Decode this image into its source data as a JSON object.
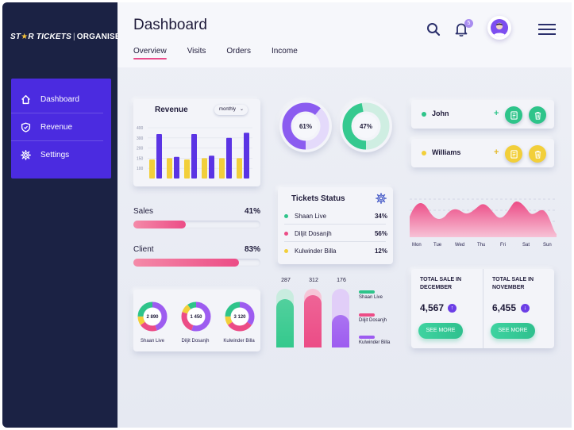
{
  "brand": {
    "name_part1": "ST",
    "name_part2": "R TICKETS",
    "star": "★",
    "divider": "|",
    "name_part3": "ORGANISERS"
  },
  "sidebar": {
    "items": [
      {
        "label": "Dashboard",
        "icon": "home-icon"
      },
      {
        "label": "Revenue",
        "icon": "shield-icon"
      },
      {
        "label": "Settings",
        "icon": "gear-icon"
      }
    ]
  },
  "header": {
    "title": "Dashboard",
    "tabs": [
      {
        "label": "Overview"
      },
      {
        "label": "Visits"
      },
      {
        "label": "Orders"
      },
      {
        "label": "Income"
      }
    ],
    "notification_count": "5"
  },
  "revenue": {
    "title": "Revenue",
    "period": "monthly",
    "chart_data": {
      "type": "bar",
      "title": "Revenue",
      "y_ticks": [
        "400",
        "300",
        "200",
        "150",
        "100"
      ],
      "ylim": [
        0,
        400
      ],
      "series": [
        {
          "name": "yellow",
          "color": "#f2cf3a",
          "values": [
            150,
            160,
            150,
            160,
            160,
            160
          ]
        },
        {
          "name": "purple",
          "color": "#5b34e4",
          "values": [
            350,
            170,
            350,
            180,
            320,
            360
          ]
        }
      ]
    }
  },
  "stats": [
    {
      "label": "Sales",
      "pct": "41%",
      "value": 41
    },
    {
      "label": "Client",
      "pct": "83%",
      "value": 83
    }
  ],
  "rings": [
    {
      "label": "61%",
      "value": 61,
      "color": "#8b5cf0"
    },
    {
      "label": "47%",
      "value": 47,
      "color": "#35c98f"
    }
  ],
  "tickets_status": {
    "title": "Tickets Status",
    "rows": [
      {
        "name": "Shaan Live",
        "pct": "34%",
        "color": "#2ec48a"
      },
      {
        "name": "Diljit Dosanjh",
        "pct": "56%",
        "color": "#ec4c86"
      },
      {
        "name": "Kulwinder Billa",
        "pct": "12%",
        "color": "#f2cf3a"
      }
    ]
  },
  "people": [
    {
      "name": "John",
      "color": "#2ec48a"
    },
    {
      "name": "Williams",
      "color": "#f2cf3a"
    }
  ],
  "wave": {
    "days": [
      "Mon",
      "Tue",
      "Wed",
      "Thu",
      "Fri",
      "Sat",
      "Sun"
    ]
  },
  "donuts": [
    {
      "value_label": "2 890",
      "label": "Shaan Live"
    },
    {
      "value_label": "1 450",
      "label": "Diljit Dosanjh"
    },
    {
      "value_label": "3 120",
      "label": "Kulwinder Billa"
    }
  ],
  "cylinders": {
    "values": [
      {
        "label": "287",
        "value": 287,
        "color": "#34c98d"
      },
      {
        "label": "312",
        "value": 312,
        "color": "#ec4c86"
      },
      {
        "label": "176",
        "value": 176,
        "color": "#9d5cf0"
      }
    ],
    "legend": [
      {
        "label": "Shaan Live",
        "color": "#2ec48a"
      },
      {
        "label": "Diljit Dosanjh",
        "color": "#ec4c86"
      },
      {
        "label": "Kulwinder Billa",
        "color": "#9d5cf0"
      }
    ]
  },
  "total_sales": [
    {
      "title_line1": "TOTAL SALE IN",
      "title_line2": "DECEMBER",
      "value": "4,567",
      "direction": "up",
      "arrow": "↑",
      "button": "SEE MORE"
    },
    {
      "title_line1": "TOTAL SALE IN",
      "title_line2": "NOVEMBER",
      "value": "6,455",
      "direction": "down",
      "arrow": "↓",
      "button": "SEE MORE"
    }
  ]
}
